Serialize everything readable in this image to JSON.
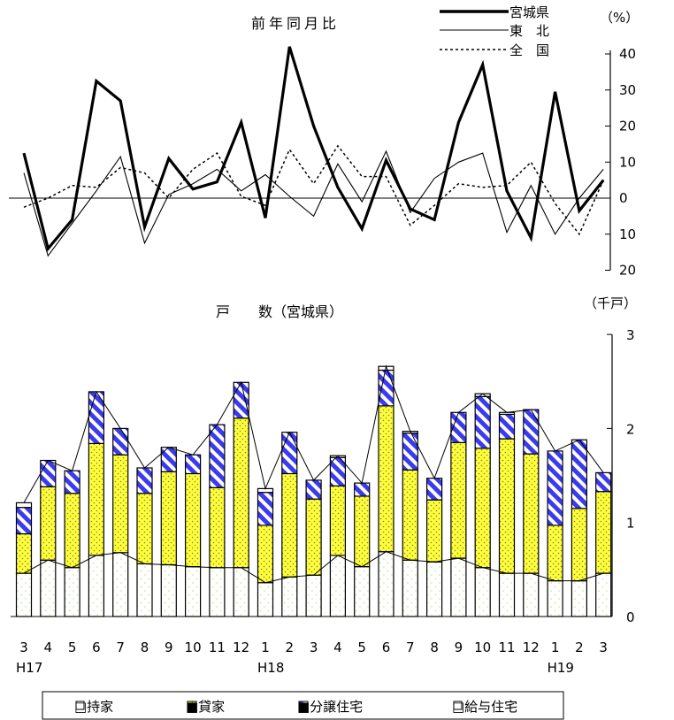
{
  "chart_data": [
    {
      "type": "line",
      "title": "前年同月比",
      "unit": "（%）",
      "categories": [
        "3",
        "4",
        "5",
        "6",
        "7",
        "8",
        "9",
        "10",
        "11",
        "12",
        "1",
        "2",
        "3",
        "4",
        "5",
        "6",
        "7",
        "8",
        "9",
        "10",
        "11",
        "12",
        "1",
        "2",
        "3"
      ],
      "year_labels": [
        {
          "index": 0,
          "label": "H17"
        },
        {
          "index": 10,
          "label": "H18"
        },
        {
          "index": 22,
          "label": "H19"
        }
      ],
      "y_ticks": [
        {
          "value": 40,
          "label": "40"
        },
        {
          "value": 30,
          "label": "30"
        },
        {
          "value": 20,
          "label": "20"
        },
        {
          "value": 10,
          "label": "10"
        },
        {
          "value": 0,
          "label": "0"
        },
        {
          "value": -10,
          "label": "10"
        },
        {
          "value": -20,
          "label": "20"
        }
      ],
      "ylim": [
        -20,
        42
      ],
      "series": [
        {
          "name": "宮城県",
          "style": "thick",
          "values": [
            12.5,
            -14,
            -6,
            32.5,
            27,
            -8,
            11,
            2.5,
            4.5,
            21,
            -5.5,
            42,
            20,
            3,
            -8.5,
            10.5,
            -3,
            -6,
            21,
            37,
            2,
            -11,
            29.5,
            -3.5,
            5
          ]
        },
        {
          "name": "東　北",
          "style": "thin",
          "values": [
            7,
            -16,
            -7,
            2,
            11.5,
            -12.5,
            1,
            4,
            8,
            2,
            6.5,
            0.5,
            -5,
            9.5,
            -1,
            13,
            -4,
            5.5,
            10,
            12.5,
            -9.5,
            3.5,
            -10,
            0,
            8
          ]
        },
        {
          "name": "全　国",
          "style": "dotted",
          "values": [
            -2.5,
            0,
            3.5,
            3,
            8.5,
            7,
            0,
            8,
            12.5,
            0.5,
            -2,
            13.5,
            4,
            14.5,
            6,
            6,
            -7.5,
            -2,
            4,
            3,
            3.5,
            10,
            -1.5,
            -10,
            5
          ]
        }
      ]
    },
    {
      "type": "bar",
      "stacked": true,
      "title": "戸　　数（宮城県）",
      "unit": "（千戸）",
      "ylim": [
        0,
        3
      ],
      "y_ticks": [
        0,
        1,
        2,
        3
      ],
      "categories": [
        "3",
        "4",
        "5",
        "6",
        "7",
        "8",
        "9",
        "10",
        "11",
        "12",
        "1",
        "2",
        "3",
        "4",
        "5",
        "6",
        "7",
        "8",
        "9",
        "10",
        "11",
        "12",
        "1",
        "2",
        "3"
      ],
      "series": [
        {
          "name": "持家",
          "values": [
            0.46,
            0.6,
            0.52,
            0.65,
            0.68,
            0.56,
            0.55,
            0.53,
            0.52,
            0.52,
            0.36,
            0.42,
            0.44,
            0.65,
            0.53,
            0.69,
            0.6,
            0.58,
            0.62,
            0.52,
            0.46,
            0.46,
            0.38,
            0.38,
            0.46
          ]
        },
        {
          "name": "貸家",
          "values": [
            0.42,
            0.78,
            0.79,
            1.19,
            1.04,
            0.75,
            0.99,
            0.99,
            0.85,
            1.59,
            0.61,
            1.1,
            0.81,
            0.74,
            0.75,
            1.55,
            0.96,
            0.66,
            1.23,
            1.27,
            1.43,
            1.27,
            0.59,
            0.77,
            0.87
          ]
        },
        {
          "name": "分譲住宅",
          "values": [
            0.28,
            0.28,
            0.24,
            0.55,
            0.28,
            0.27,
            0.26,
            0.2,
            0.67,
            0.38,
            0.35,
            0.44,
            0.2,
            0.3,
            0.14,
            0.38,
            0.39,
            0.23,
            0.32,
            0.55,
            0.26,
            0.47,
            0.79,
            0.73,
            0.2
          ]
        },
        {
          "name": "給与住宅",
          "values": [
            0.05,
            0.0,
            0.0,
            0.0,
            0.0,
            0.0,
            0.0,
            0.0,
            0.0,
            0.0,
            0.04,
            0.0,
            0.0,
            0.02,
            0.0,
            0.04,
            0.02,
            0.0,
            0.0,
            0.03,
            0.02,
            0.0,
            0.0,
            0.0,
            0.0
          ]
        }
      ],
      "legend_placement": "bottom"
    }
  ],
  "legend_line": [
    "宮城県",
    "東　北",
    "全　国"
  ],
  "legend_bar": [
    "□持家",
    "■貸家",
    "■分譲住宅",
    "□給与住宅"
  ]
}
